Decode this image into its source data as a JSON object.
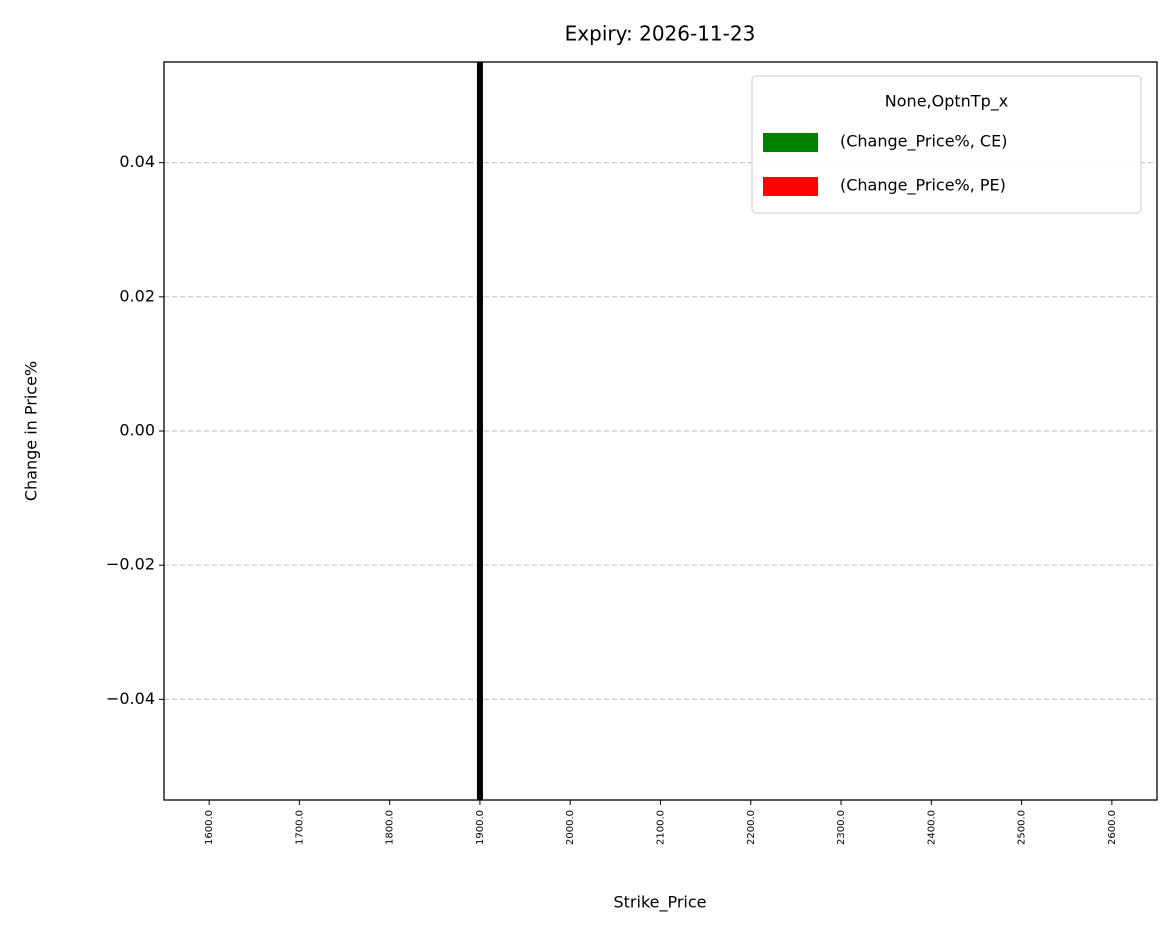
{
  "chart_data": {
    "type": "bar",
    "title": "Expiry: 2026-11-23",
    "x_label": "Strike_Price",
    "y_label": "Change in Price%",
    "categories": [
      "1600.0",
      "1700.0",
      "1800.0",
      "1900.0",
      "2000.0",
      "2100.0",
      "2200.0",
      "2300.0",
      "2400.0",
      "2500.0",
      "2600.0"
    ],
    "series": [
      {
        "name": "(Change_Price%, CE)",
        "color": "#008000",
        "values": [
          0,
          0,
          0,
          0,
          0,
          0,
          0,
          0,
          0,
          0,
          0
        ]
      },
      {
        "name": "(Change_Price%, PE)",
        "color": "#ff0000",
        "values": [
          0,
          0,
          0,
          0,
          0,
          0,
          0,
          0,
          0,
          0,
          0
        ]
      }
    ],
    "legend_title": "None,OptnTp_x",
    "legend": "upper right",
    "vline": "1900.0",
    "vline_color": "#000000",
    "ylim": [
      -0.055,
      0.055
    ],
    "yticks": [
      {
        "value": -0.04,
        "label": "−0.04"
      },
      {
        "value": -0.02,
        "label": "−0.02"
      },
      {
        "value": 0,
        "label": "0.00"
      },
      {
        "value": 0.02,
        "label": "0.02"
      },
      {
        "value": 0.04,
        "label": "0.04"
      }
    ],
    "grid": true
  }
}
